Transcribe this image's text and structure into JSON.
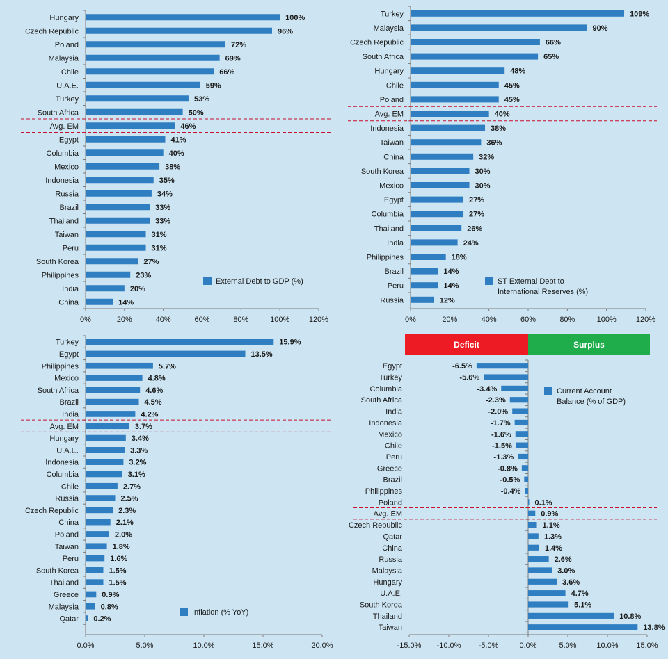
{
  "colors": {
    "bar": "#2e7ec1",
    "axis": "#7a7a7a",
    "divider": "#c8102e",
    "deficit": "#ed1c24",
    "surplus": "#1fad4b",
    "background": "#cde5f2"
  },
  "chart_data": [
    {
      "type": "bar",
      "orientation": "horizontal",
      "legend": "External Debt to GDP (%)",
      "categories": [
        "Hungary",
        "Czech Republic",
        "Poland",
        "Malaysia",
        "Chile",
        "U.A.E.",
        "Turkey",
        "South Africa",
        "Avg. EM",
        "Egypt",
        "Columbia",
        "Mexico",
        "Indonesia",
        "Russia",
        "Brazil",
        "Thailand",
        "Taiwan",
        "Peru",
        "South Korea",
        "Philippines",
        "India",
        "China"
      ],
      "values": [
        100,
        96,
        72,
        69,
        66,
        59,
        53,
        50,
        46,
        41,
        40,
        38,
        35,
        34,
        33,
        33,
        31,
        31,
        27,
        23,
        20,
        14
      ],
      "value_labels": [
        "100%",
        "96%",
        "72%",
        "69%",
        "66%",
        "59%",
        "53%",
        "50%",
        "46%",
        "41%",
        "40%",
        "38%",
        "35%",
        "34%",
        "33%",
        "33%",
        "31%",
        "31%",
        "27%",
        "23%",
        "20%",
        "14%"
      ],
      "xticks": [
        "0%",
        "20%",
        "40%",
        "60%",
        "80%",
        "100%",
        "120%"
      ],
      "xlim": [
        0,
        120
      ],
      "highlight_index": 8
    },
    {
      "type": "bar",
      "orientation": "horizontal",
      "legend": [
        "ST External Debt to",
        "International Reserves (%)"
      ],
      "categories": [
        "Turkey",
        "Malaysia",
        "Czech Republic",
        "South Africa",
        "Hungary",
        "Chile",
        "Poland",
        "Avg. EM",
        "Indonesia",
        "Taiwan",
        "China",
        "South Korea",
        "Mexico",
        "Egypt",
        "Columbia",
        "Thailand",
        "India",
        "Philippines",
        "Brazil",
        "Peru",
        "Russia"
      ],
      "values": [
        109,
        90,
        66,
        65,
        48,
        45,
        45,
        40,
        38,
        36,
        32,
        30,
        30,
        27,
        27,
        26,
        24,
        18,
        14,
        14,
        12
      ],
      "value_labels": [
        "109%",
        "90%",
        "66%",
        "65%",
        "48%",
        "45%",
        "45%",
        "40%",
        "38%",
        "36%",
        "32%",
        "30%",
        "30%",
        "27%",
        "27%",
        "26%",
        "24%",
        "18%",
        "14%",
        "14%",
        "12%"
      ],
      "xticks": [
        "0%",
        "20%",
        "40%",
        "60%",
        "80%",
        "100%",
        "120%"
      ],
      "xlim": [
        0,
        120
      ],
      "highlight_index": 7
    },
    {
      "type": "bar",
      "orientation": "horizontal",
      "legend": "Inflation (% YoY)",
      "categories": [
        "Turkey",
        "Egypt",
        "Philippines",
        "Mexico",
        "South Africa",
        "Brazil",
        "India",
        "Avg. EM",
        "Hungary",
        "U.A.E.",
        "Indonesia",
        "Columbia",
        "Chile",
        "Russia",
        "Czech Republic",
        "China",
        "Poland",
        "Taiwan",
        "Peru",
        "South Korea",
        "Thailand",
        "Greece",
        "Malaysia",
        "Qatar"
      ],
      "values": [
        15.9,
        13.5,
        5.7,
        4.8,
        4.6,
        4.5,
        4.2,
        3.7,
        3.4,
        3.3,
        3.2,
        3.1,
        2.7,
        2.5,
        2.3,
        2.1,
        2.0,
        1.8,
        1.6,
        1.5,
        1.5,
        0.9,
        0.8,
        0.2
      ],
      "value_labels": [
        "15.9%",
        "13.5%",
        "5.7%",
        "4.8%",
        "4.6%",
        "4.5%",
        "4.2%",
        "3.7%",
        "3.4%",
        "3.3%",
        "3.2%",
        "3.1%",
        "2.7%",
        "2.5%",
        "2.3%",
        "2.1%",
        "2.0%",
        "1.8%",
        "1.6%",
        "1.5%",
        "1.5%",
        "0.9%",
        "0.8%",
        "0.2%"
      ],
      "xticks": [
        "0.0%",
        "5.0%",
        "10.0%",
        "15.0%",
        "20.0%"
      ],
      "xlim": [
        0,
        20
      ],
      "highlight_index": 7
    },
    {
      "type": "bar",
      "orientation": "horizontal",
      "legend": [
        "Current Account",
        "Balance (% of GDP)"
      ],
      "bands": {
        "negative": "Deficit",
        "positive": "Surplus"
      },
      "categories": [
        "Egypt",
        "Turkey",
        "Columbia",
        "South Africa",
        "India",
        "Indonesia",
        "Mexico",
        "Chile",
        "Peru",
        "Greece",
        "Brazil",
        "Philippines",
        "Poland",
        "Avg. EM",
        "Czech Republic",
        "Qatar",
        "China",
        "Russia",
        "Malaysia",
        "Hungary",
        "U.A.E.",
        "South Korea",
        "Thailand",
        "Taiwan"
      ],
      "values": [
        -6.5,
        -5.6,
        -3.4,
        -2.3,
        -2.0,
        -1.7,
        -1.6,
        -1.5,
        -1.3,
        -0.8,
        -0.5,
        -0.4,
        0.1,
        0.9,
        1.1,
        1.3,
        1.4,
        2.6,
        3.0,
        3.6,
        4.7,
        5.1,
        10.8,
        13.8
      ],
      "value_labels": [
        "-6.5%",
        "-5.6%",
        "-3.4%",
        "-2.3%",
        "-2.0%",
        "-1.7%",
        "-1.6%",
        "-1.5%",
        "-1.3%",
        "-0.8%",
        "-0.5%",
        "-0.4%",
        "0.1%",
        "0.9%",
        "1.1%",
        "1.3%",
        "1.4%",
        "2.6%",
        "3.0%",
        "3.6%",
        "4.7%",
        "5.1%",
        "10.8%",
        "13.8%"
      ],
      "xticks": [
        "-15.0%",
        "-10.0%",
        "-5.0%",
        "0.0%",
        "5.0%",
        "10.0%",
        "15.0%"
      ],
      "xlim": [
        -15,
        15
      ],
      "highlight_index": 13
    }
  ]
}
